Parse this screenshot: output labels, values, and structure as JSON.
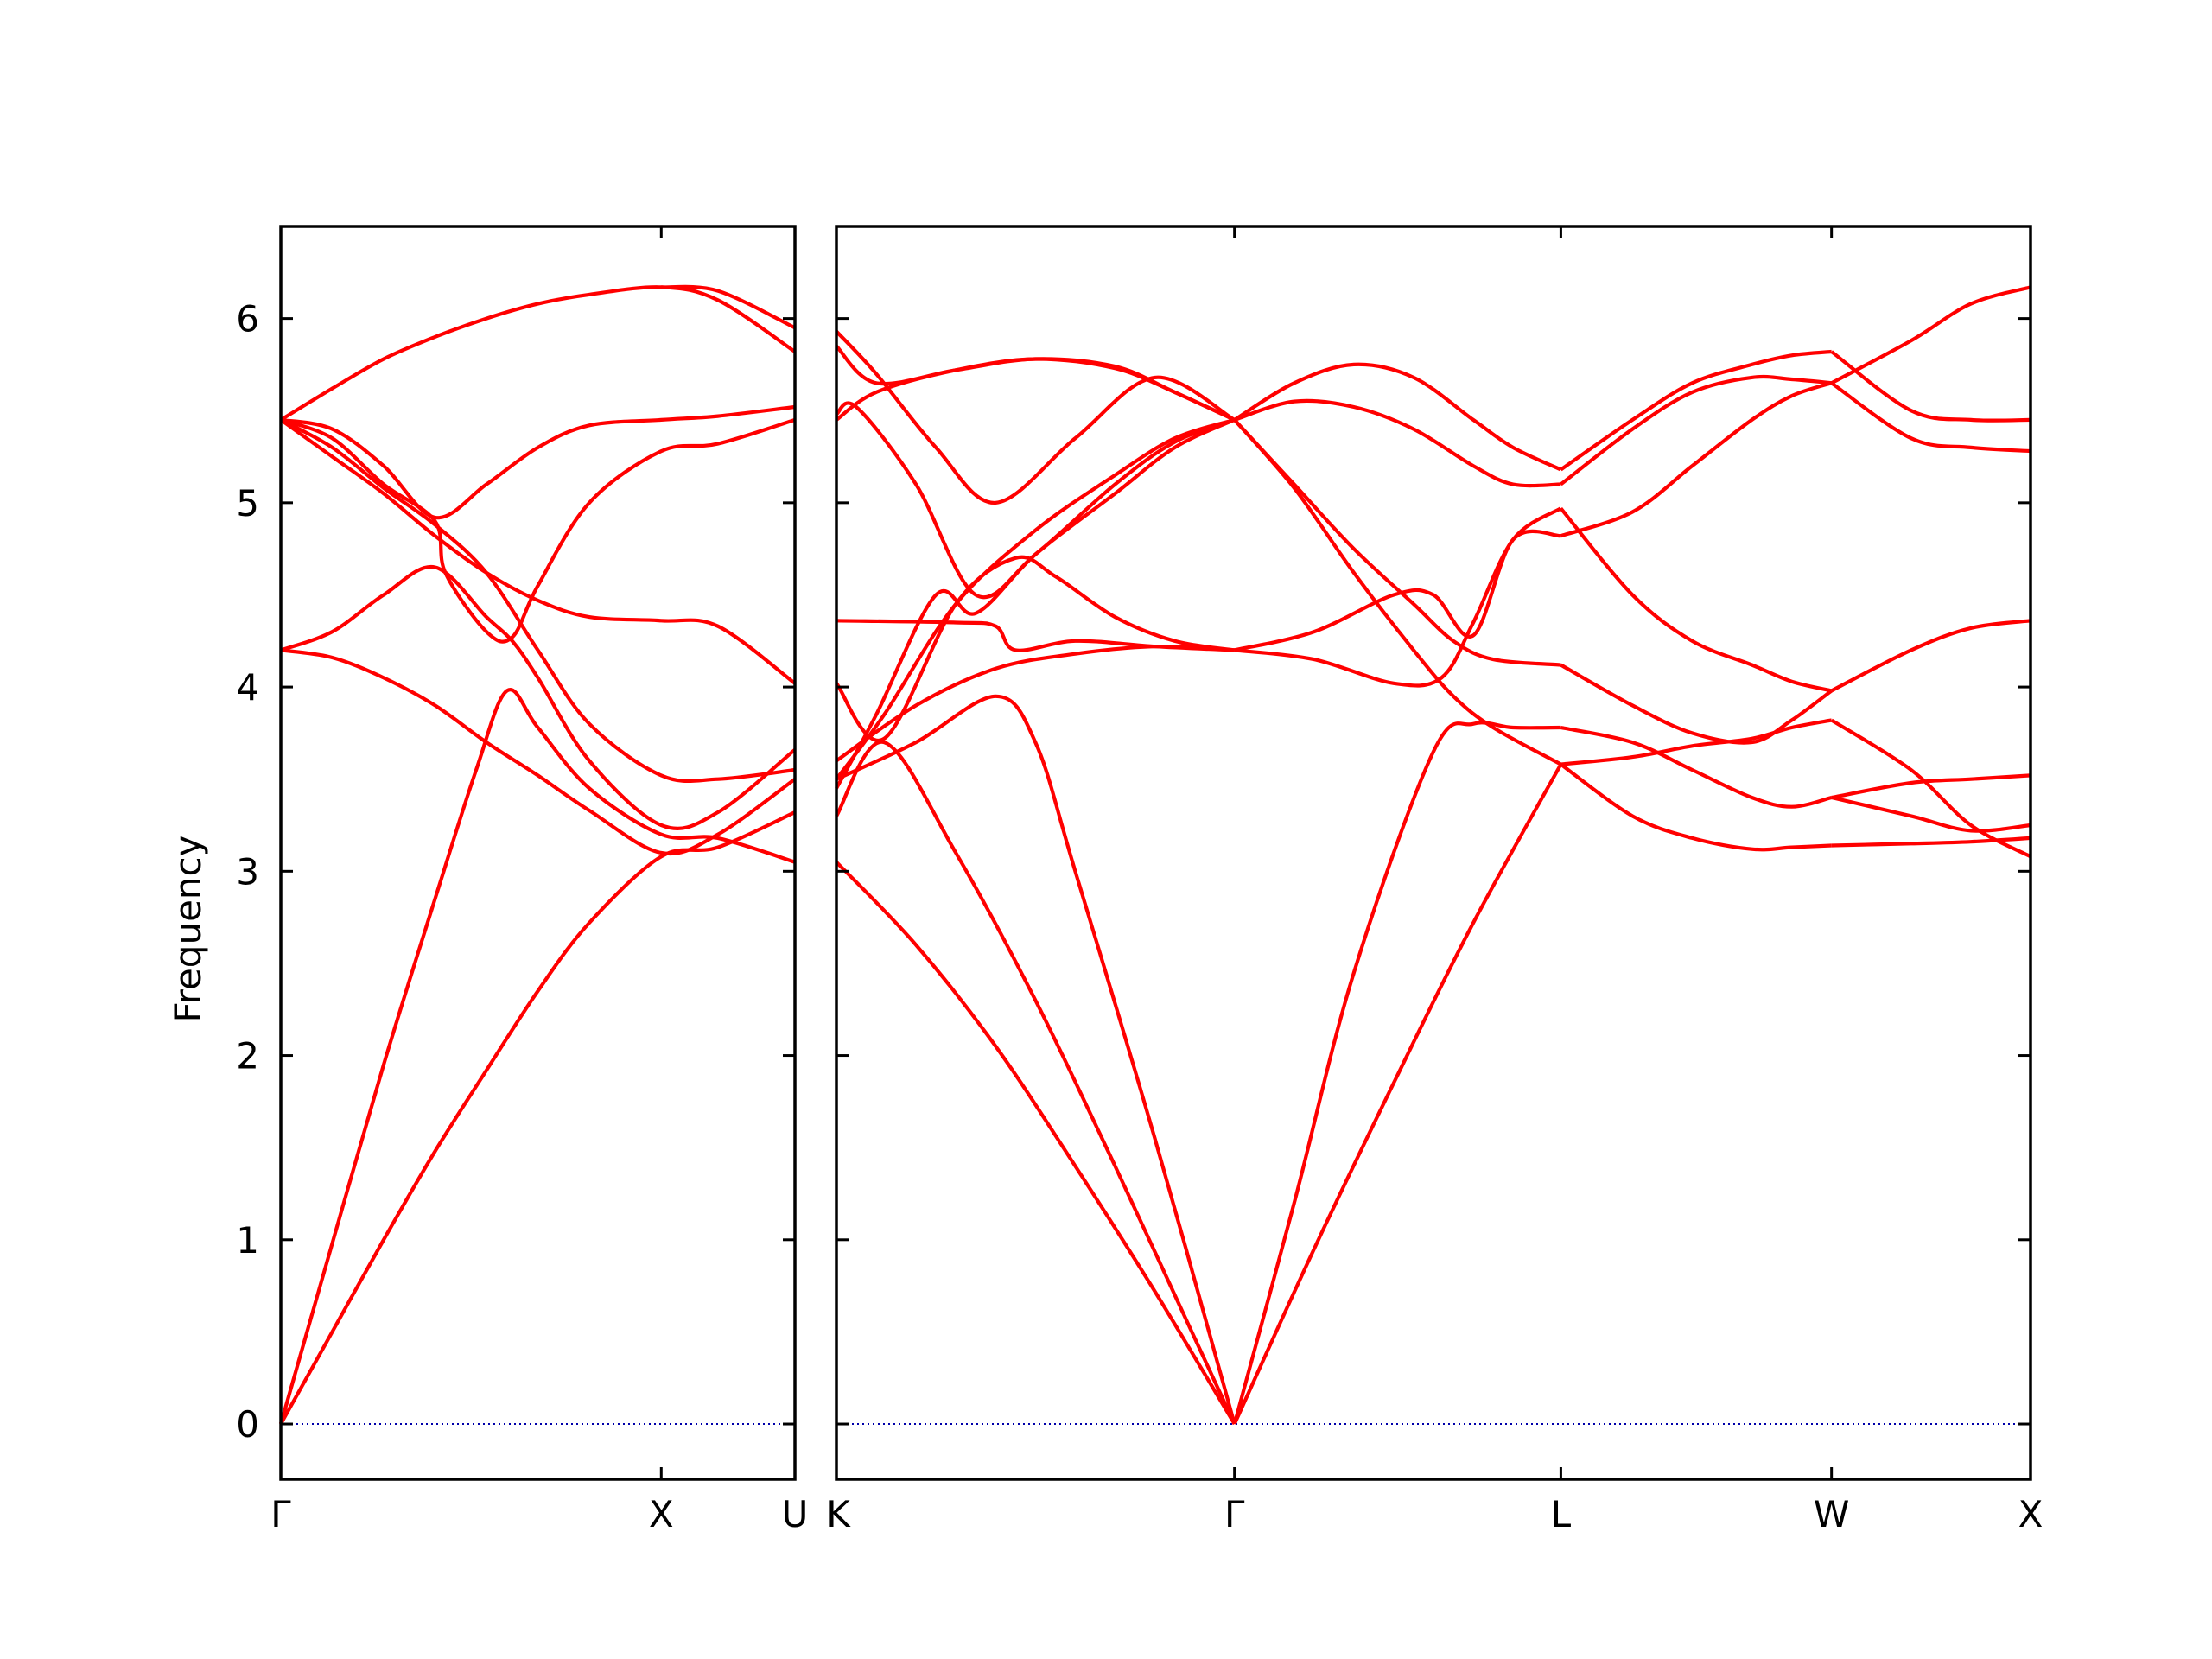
{
  "chart_data": {
    "type": "line",
    "title": "",
    "ylabel": "Frequency",
    "xlabel": "",
    "ylim": [
      -0.3,
      6.5
    ],
    "yticks": [
      0,
      1,
      2,
      3,
      4,
      5,
      6
    ],
    "line_color": "#ff0000",
    "zero_line_color": "#0000aa",
    "grid": false,
    "panels": [
      {
        "xlim": [
          0,
          1.0
        ],
        "ticks": [
          {
            "x": 0,
            "label": "Γ"
          },
          {
            "x": 0.74,
            "label": "X"
          },
          {
            "x": 1.0,
            "label": "U"
          }
        ],
        "series": [
          {
            "x": [
              0,
              0.1,
              0.2,
              0.3,
              0.4,
              0.5,
              0.6,
              0.74,
              0.85,
              1.0
            ],
            "y": [
              0.0,
              0.5,
              1.0,
              1.48,
              1.92,
              2.35,
              2.72,
              3.08,
              3.13,
              3.32
            ]
          },
          {
            "x": [
              0,
              0.1,
              0.2,
              0.3,
              0.38,
              0.44,
              0.5,
              0.6,
              0.74,
              0.85,
              1.0
            ],
            "y": [
              0.0,
              0.98,
              1.95,
              2.85,
              3.55,
              3.98,
              3.78,
              3.45,
              3.2,
              3.18,
              3.05
            ]
          },
          {
            "x": [
              0,
              0.1,
              0.2,
              0.3,
              0.4,
              0.5,
              0.6,
              0.74,
              0.85,
              1.0
            ],
            "y": [
              4.2,
              4.16,
              4.05,
              3.9,
              3.7,
              3.52,
              3.33,
              3.1,
              3.2,
              3.5
            ]
          },
          {
            "x": [
              0,
              0.1,
              0.2,
              0.3,
              0.4,
              0.45,
              0.5,
              0.6,
              0.74,
              0.85,
              1.0
            ],
            "y": [
              4.2,
              4.3,
              4.5,
              4.65,
              4.38,
              4.25,
              4.05,
              3.6,
              3.25,
              3.32,
              3.66
            ]
          },
          {
            "x": [
              0,
              0.1,
              0.2,
              0.3,
              0.4,
              0.5,
              0.6,
              0.74,
              0.85,
              1.0
            ],
            "y": [
              5.45,
              5.3,
              5.08,
              4.88,
              4.62,
              4.2,
              3.8,
              3.52,
              3.5,
              3.55
            ]
          },
          {
            "x": [
              0,
              0.1,
              0.2,
              0.3,
              0.4,
              0.5,
              0.6,
              0.74,
              0.85,
              1.0
            ],
            "y": [
              5.45,
              5.25,
              5.05,
              4.82,
              4.62,
              4.47,
              4.38,
              4.36,
              4.33,
              4.02
            ]
          },
          {
            "x": [
              0,
              0.1,
              0.2,
              0.3,
              0.32,
              0.4,
              0.45,
              0.5,
              0.6,
              0.74,
              0.85,
              1.0
            ],
            "y": [
              5.45,
              5.35,
              5.1,
              4.9,
              4.62,
              4.3,
              4.27,
              4.55,
              5.0,
              5.28,
              5.32,
              5.45
            ]
          },
          {
            "x": [
              0,
              0.1,
              0.2,
              0.3,
              0.4,
              0.5,
              0.6,
              0.74,
              0.85,
              1.0
            ],
            "y": [
              5.45,
              5.4,
              5.2,
              4.92,
              5.1,
              5.3,
              5.42,
              5.45,
              5.47,
              5.52
            ]
          },
          {
            "x": [
              0,
              0.1,
              0.2,
              0.3,
              0.4,
              0.5,
              0.6,
              0.74,
              0.85,
              1.0
            ],
            "y": [
              5.45,
              5.62,
              5.78,
              5.9,
              6.0,
              6.08,
              6.13,
              6.17,
              6.1,
              5.82
            ]
          },
          {
            "x": [
              0.74,
              0.85,
              1.0
            ],
            "y": [
              6.17,
              6.15,
              5.95
            ]
          }
        ]
      },
      {
        "xlim": [
          0,
          3.0
        ],
        "ticks": [
          {
            "x": 0,
            "label": "K"
          },
          {
            "x": 1.0,
            "label": "Γ"
          },
          {
            "x": 1.82,
            "label": "L"
          },
          {
            "x": 2.5,
            "label": "W"
          },
          {
            "x": 3.0,
            "label": "X"
          }
        ],
        "series": [
          {
            "x": [
              0,
              0.2,
              0.4,
              0.6,
              0.8,
              1.0
            ],
            "y": [
              3.05,
              2.6,
              2.05,
              1.4,
              0.72,
              0.0
            ]
          },
          {
            "x": [
              0,
              0.12,
              0.3,
              0.5,
              0.7,
              0.85,
              1.0
            ],
            "y": [
              3.3,
              3.7,
              3.1,
              2.3,
              1.4,
              0.7,
              0.0
            ]
          },
          {
            "x": [
              0,
              0.2,
              0.4,
              0.5,
              0.6,
              0.8,
              1.0
            ],
            "y": [
              3.5,
              3.7,
              3.95,
              3.7,
              3.0,
              1.55,
              0.0
            ]
          },
          {
            "x": [
              0,
              0.2,
              0.4,
              0.6,
              0.8,
              1.0
            ],
            "y": [
              3.6,
              3.9,
              4.1,
              4.18,
              4.22,
              4.2
            ]
          },
          {
            "x": [
              0,
              0.12,
              0.3,
              0.45,
              0.55,
              0.7,
              0.85,
              1.0
            ],
            "y": [
              4.02,
              3.72,
              4.45,
              4.7,
              4.6,
              4.38,
              4.25,
              4.2
            ]
          },
          {
            "x": [
              0,
              0.3,
              0.4,
              0.45,
              0.6,
              0.8,
              1.0
            ],
            "y": [
              4.36,
              4.35,
              4.33,
              4.2,
              4.25,
              4.22,
              4.2
            ]
          },
          {
            "x": [
              0,
              0.12,
              0.3,
              0.5,
              0.7,
              0.85,
              1.0
            ],
            "y": [
              3.5,
              3.85,
              4.45,
              4.85,
              5.15,
              5.35,
              5.45
            ]
          },
          {
            "x": [
              0,
              0.1,
              0.25,
              0.35,
              0.5,
              0.7,
              0.85,
              1.0
            ],
            "y": [
              3.45,
              3.85,
              4.5,
              4.4,
              4.72,
              5.05,
              5.3,
              5.45
            ]
          },
          {
            "x": [
              0,
              0.05,
              0.2,
              0.35,
              0.5,
              0.7,
              0.85,
              1.0
            ],
            "y": [
              5.48,
              5.52,
              5.1,
              4.5,
              4.72,
              5.1,
              5.33,
              5.45
            ]
          },
          {
            "x": [
              0,
              0.1,
              0.3,
              0.5,
              0.7,
              0.85,
              1.0
            ],
            "y": [
              5.45,
              5.6,
              5.72,
              5.78,
              5.73,
              5.6,
              5.45
            ]
          },
          {
            "x": [
              0,
              0.1,
              0.25,
              0.4,
              0.6,
              0.8,
              1.0
            ],
            "y": [
              5.93,
              5.7,
              5.3,
              5.0,
              5.35,
              5.68,
              5.45
            ]
          },
          {
            "x": [
              0,
              0.1,
              0.3,
              0.5,
              0.7,
              0.85,
              1.0
            ],
            "y": [
              5.85,
              5.65,
              5.72,
              5.78,
              5.74,
              5.6,
              5.45
            ]
          },
          {
            "x": [
              1.0,
              1.15,
              1.3,
              1.5,
              1.6,
              1.7,
              1.82
            ],
            "y": [
              0.0,
              1.2,
              2.45,
              3.65,
              3.8,
              3.78,
              3.78
            ]
          },
          {
            "x": [
              1.0,
              1.2,
              1.4,
              1.6,
              1.82
            ],
            "y": [
              0.0,
              0.95,
              1.85,
              2.72,
              3.58
            ]
          },
          {
            "x": [
              1.0,
              1.15,
              1.3,
              1.45,
              1.55,
              1.65,
              1.82
            ],
            "y": [
              5.45,
              5.08,
              4.62,
              4.2,
              3.95,
              3.78,
              3.58
            ]
          },
          {
            "x": [
              1.0,
              1.15,
              1.3,
              1.45,
              1.55,
              1.65,
              1.82
            ],
            "y": [
              5.45,
              5.1,
              4.75,
              4.45,
              4.25,
              4.15,
              4.12
            ]
          },
          {
            "x": [
              1.0,
              1.2,
              1.4,
              1.52,
              1.6,
              1.7,
              1.82
            ],
            "y": [
              4.2,
              4.15,
              4.02,
              4.05,
              4.35,
              4.8,
              4.97
            ]
          },
          {
            "x": [
              1.0,
              1.2,
              1.4,
              1.5,
              1.6,
              1.7,
              1.82
            ],
            "y": [
              4.2,
              4.3,
              4.5,
              4.5,
              4.28,
              4.8,
              4.82
            ]
          },
          {
            "x": [
              1.0,
              1.15,
              1.3,
              1.45,
              1.6,
              1.7,
              1.82
            ],
            "y": [
              5.45,
              5.55,
              5.52,
              5.4,
              5.2,
              5.1,
              5.1
            ]
          },
          {
            "x": [
              1.0,
              1.15,
              1.3,
              1.45,
              1.6,
              1.7,
              1.82
            ],
            "y": [
              5.45,
              5.65,
              5.75,
              5.68,
              5.45,
              5.3,
              5.18
            ]
          },
          {
            "x": [
              1.82,
              2.0,
              2.15,
              2.3,
              2.4,
              2.5
            ],
            "y": [
              3.58,
              3.62,
              3.68,
              3.72,
              3.78,
              3.82
            ]
          },
          {
            "x": [
              1.82,
              2.0,
              2.15,
              2.3,
              2.4,
              2.5
            ],
            "y": [
              3.58,
              3.3,
              3.18,
              3.12,
              3.13,
              3.14
            ]
          },
          {
            "x": [
              1.82,
              2.0,
              2.15,
              2.3,
              2.4,
              2.5
            ],
            "y": [
              3.78,
              3.7,
              3.55,
              3.4,
              3.35,
              3.4
            ]
          },
          {
            "x": [
              1.82,
              2.0,
              2.15,
              2.3,
              2.4,
              2.5
            ],
            "y": [
              4.12,
              3.9,
              3.75,
              3.7,
              3.82,
              3.98
            ]
          },
          {
            "x": [
              1.82,
              2.0,
              2.15,
              2.3,
              2.4,
              2.5
            ],
            "y": [
              4.97,
              4.5,
              4.25,
              4.12,
              4.03,
              3.98
            ]
          },
          {
            "x": [
              1.82,
              2.0,
              2.15,
              2.3,
              2.4,
              2.5
            ],
            "y": [
              4.82,
              4.95,
              5.2,
              5.45,
              5.58,
              5.65
            ]
          },
          {
            "x": [
              1.82,
              2.0,
              2.15,
              2.3,
              2.4,
              2.5
            ],
            "y": [
              5.1,
              5.4,
              5.6,
              5.68,
              5.67,
              5.65
            ]
          },
          {
            "x": [
              1.82,
              2.0,
              2.15,
              2.3,
              2.4,
              2.5
            ],
            "y": [
              5.18,
              5.45,
              5.65,
              5.75,
              5.8,
              5.82
            ]
          },
          {
            "x": [
              2.5,
              2.7,
              2.85,
              3.0
            ],
            "y": [
              3.14,
              3.15,
              3.16,
              3.18
            ]
          },
          {
            "x": [
              2.5,
              2.7,
              2.85,
              3.0
            ],
            "y": [
              3.82,
              3.55,
              3.25,
              3.08
            ]
          },
          {
            "x": [
              2.5,
              2.7,
              2.85,
              3.0
            ],
            "y": [
              3.4,
              3.48,
              3.5,
              3.52
            ]
          },
          {
            "x": [
              2.5,
              2.7,
              2.85,
              3.0
            ],
            "y": [
              3.98,
              4.2,
              4.32,
              4.36
            ]
          },
          {
            "x": [
              2.5,
              2.7,
              2.85,
              3.0
            ],
            "y": [
              3.4,
              3.3,
              3.22,
              3.25
            ]
          },
          {
            "x": [
              2.5,
              2.7,
              2.85,
              3.0
            ],
            "y": [
              5.65,
              5.88,
              6.08,
              6.17
            ]
          },
          {
            "x": [
              2.5,
              2.7,
              2.85,
              3.0
            ],
            "y": [
              5.65,
              5.35,
              5.3,
              5.28
            ]
          },
          {
            "x": [
              2.5,
              2.7,
              2.85,
              3.0
            ],
            "y": [
              5.82,
              5.5,
              5.45,
              5.45
            ]
          }
        ]
      }
    ]
  }
}
